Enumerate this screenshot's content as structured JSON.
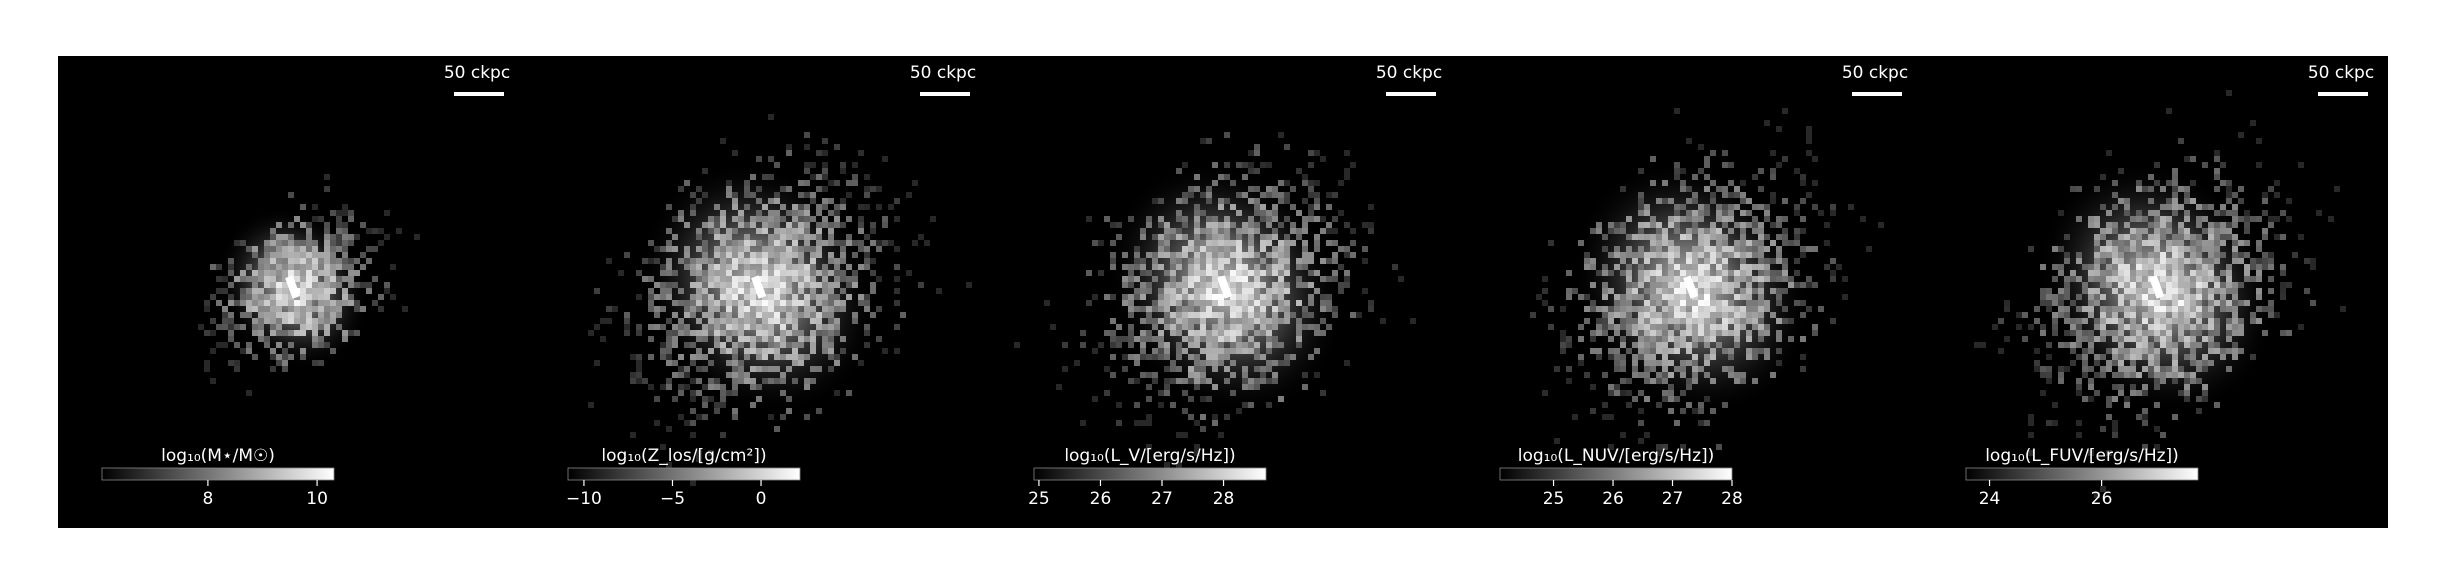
{
  "chart_data": [
    {
      "type": "image",
      "scale_label": "50 ckpc",
      "colorbar_label": "log₁₀(M⋆/M☉)",
      "clim": [
        6.06,
        10.31
      ],
      "cticks": [
        8,
        10
      ],
      "cmap": [
        "#000000",
        "#ffffff"
      ]
    },
    {
      "type": "image",
      "scale_label": "50 ckpc",
      "colorbar_label": "log₁₀(Z_los/[g/cm²])",
      "clim": [
        -10.9,
        2.2
      ],
      "cticks": [
        {
          "value": -10,
          "label": "−10"
        },
        {
          "value": -5,
          "label": "−5"
        },
        0
      ],
      "cmap": [
        "#000000",
        "#ffffff"
      ]
    },
    {
      "type": "image",
      "scale_label": "50 ckpc",
      "colorbar_label": "log₁₀(L_V/[erg/s/Hz])",
      "clim": [
        24.92,
        28.69
      ],
      "cticks": [
        25,
        26,
        27,
        28
      ],
      "cmap": [
        "#000000",
        "#ffffff"
      ]
    },
    {
      "type": "image",
      "scale_label": "50 ckpc",
      "colorbar_label": "log₁₀(L_NUV/[erg/s/Hz])",
      "clim": [
        24.1,
        28.0
      ],
      "cticks": [
        25,
        26,
        27,
        28
      ],
      "cmap": [
        "#000000",
        "#ffffff"
      ]
    },
    {
      "type": "image",
      "scale_label": "50 ckpc",
      "colorbar_label": "log₁₀(L_FUV/[erg/s/Hz])",
      "clim": [
        23.58,
        27.72
      ],
      "cticks": [
        24,
        26
      ],
      "cmap": [
        "#000000",
        "#ffffff"
      ]
    }
  ]
}
